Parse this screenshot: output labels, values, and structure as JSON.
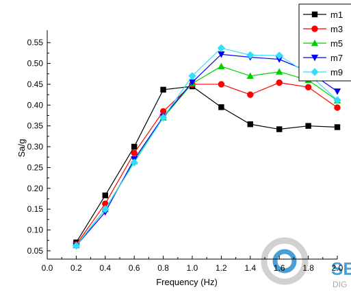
{
  "chart_data": {
    "type": "line",
    "title": "",
    "xlabel": "Frequency (Hz)",
    "ylabel": "Sa/g",
    "xlim": [
      0.0,
      2.0
    ],
    "ylim": [
      0.03,
      0.58
    ],
    "xticks": [
      "0.0",
      "0.2",
      "0.4",
      "0.6",
      "0.8",
      "1.0",
      "1.2",
      "1.4",
      "1.6",
      "1.8",
      "2.0"
    ],
    "yticks": [
      "0.05",
      "0.10",
      "0.15",
      "0.20",
      "0.25",
      "0.30",
      "0.35",
      "0.40",
      "0.45",
      "0.50",
      "0.55"
    ],
    "x": [
      0.2,
      0.4,
      0.6,
      0.8,
      1.0,
      1.2,
      1.4,
      1.6,
      1.8,
      2.0
    ],
    "grid": false,
    "legend_position": "top-right",
    "series": [
      {
        "name": "m1",
        "color": "#000000",
        "marker": "square",
        "values": [
          0.07,
          0.183,
          0.3,
          0.437,
          0.445,
          0.395,
          0.354,
          0.342,
          0.35,
          0.347
        ]
      },
      {
        "name": "m3",
        "color": "#ff0000",
        "marker": "circle",
        "values": [
          0.065,
          0.163,
          0.285,
          0.385,
          0.45,
          0.45,
          0.425,
          0.454,
          0.443,
          0.394
        ]
      },
      {
        "name": "m5",
        "color": "#00d000",
        "marker": "triangle-up",
        "values": [
          0.063,
          0.15,
          0.265,
          0.37,
          0.452,
          0.493,
          0.47,
          0.48,
          0.46,
          0.411
        ]
      },
      {
        "name": "m7",
        "color": "#0000ff",
        "marker": "triangle-down",
        "values": [
          0.062,
          0.143,
          0.27,
          0.372,
          0.455,
          0.522,
          0.515,
          0.51,
          0.481,
          0.433
        ]
      },
      {
        "name": "m9",
        "color": "#33ddff",
        "marker": "diamond",
        "values": [
          0.062,
          0.15,
          0.262,
          0.37,
          0.47,
          0.537,
          0.52,
          0.519,
          0.475,
          0.412
        ]
      }
    ]
  },
  "watermark": {
    "text_main": "SE",
    "text_sub": "DIG",
    "color": "#2f8fc9"
  }
}
